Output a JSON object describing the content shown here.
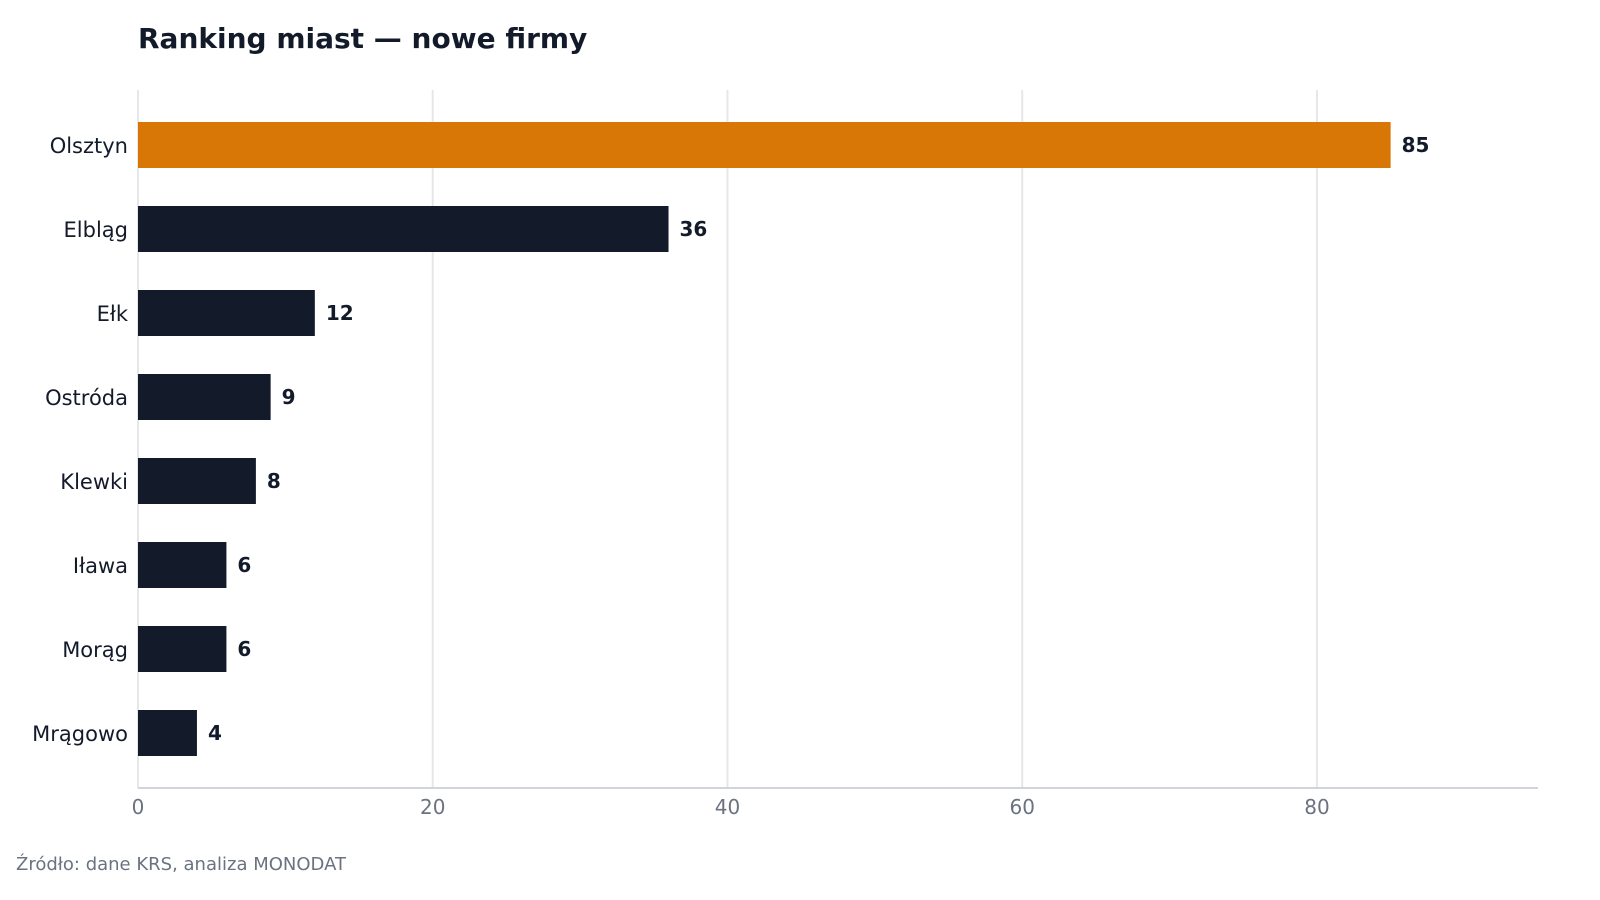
{
  "chart_data": {
    "type": "bar",
    "orientation": "horizontal",
    "title": "Ranking miast — nowe firmy",
    "xlabel": "",
    "ylabel": "",
    "categories": [
      "Olsztyn",
      "Elbląg",
      "Ełk",
      "Ostróda",
      "Klewki",
      "Iława",
      "Morąg",
      "Mrągowo"
    ],
    "values": [
      85,
      36,
      12,
      9,
      8,
      6,
      6,
      4
    ],
    "xlim": [
      0,
      95
    ],
    "xticks": [
      0,
      20,
      40,
      60,
      80
    ],
    "grid": "vertical",
    "highlight": {
      "category": "Olsztyn",
      "color": "#d97706"
    },
    "bar_color": "#131a2a",
    "value_labels": true
  },
  "source": "Źródło: dane KRS, analiza MONODAT"
}
